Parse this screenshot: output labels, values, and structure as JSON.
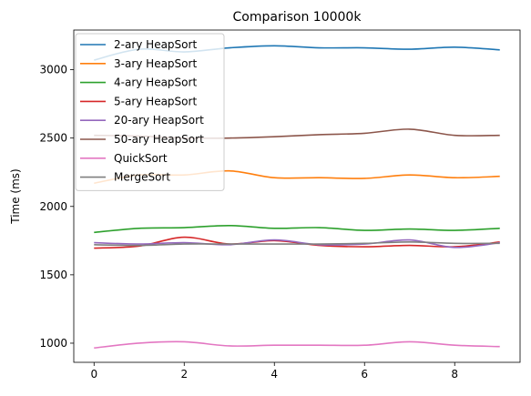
{
  "chart_data": {
    "type": "line",
    "title": "Comparison 10000k",
    "xlabel": "",
    "ylabel": "Time (ms)",
    "xlim": [
      -0.45,
      9.45
    ],
    "ylim": [
      860,
      3290
    ],
    "xticks": [
      0,
      2,
      4,
      6,
      8
    ],
    "yticks": [
      1000,
      1500,
      2000,
      2500,
      3000
    ],
    "legend_position": "upper-left",
    "grid": false,
    "x": [
      0,
      1,
      2,
      3,
      4,
      5,
      6,
      7,
      8,
      9
    ],
    "series": [
      {
        "name": "2-ary HeapSort",
        "color": "#1f77b4",
        "values": [
          3070,
          3150,
          3130,
          3160,
          3175,
          3160,
          3160,
          3150,
          3165,
          3145
        ]
      },
      {
        "name": "3-ary HeapSort",
        "color": "#ff7f0e",
        "values": [
          2170,
          2230,
          2230,
          2260,
          2210,
          2210,
          2205,
          2230,
          2210,
          2220
        ]
      },
      {
        "name": "4-ary HeapSort",
        "color": "#2ca02c",
        "values": [
          1810,
          1840,
          1845,
          1860,
          1840,
          1845,
          1825,
          1835,
          1825,
          1840
        ]
      },
      {
        "name": "5-ary HeapSort",
        "color": "#d62728",
        "values": [
          1695,
          1710,
          1775,
          1725,
          1750,
          1715,
          1705,
          1715,
          1705,
          1740
        ]
      },
      {
        "name": "20-ary HeapSort",
        "color": "#9467bd",
        "values": [
          1735,
          1725,
          1735,
          1720,
          1755,
          1720,
          1725,
          1755,
          1700,
          1735
        ]
      },
      {
        "name": "50-ary HeapSort",
        "color": "#8c564b",
        "values": [
          2520,
          2515,
          2500,
          2500,
          2510,
          2525,
          2535,
          2565,
          2520,
          2520
        ]
      },
      {
        "name": "QuickSort",
        "color": "#e377c2",
        "values": [
          965,
          1000,
          1010,
          980,
          985,
          985,
          985,
          1010,
          985,
          975
        ]
      },
      {
        "name": "MergeSort",
        "color": "#7f7f7f",
        "values": [
          1720,
          1715,
          1725,
          1725,
          1725,
          1725,
          1730,
          1740,
          1730,
          1730
        ]
      }
    ]
  }
}
